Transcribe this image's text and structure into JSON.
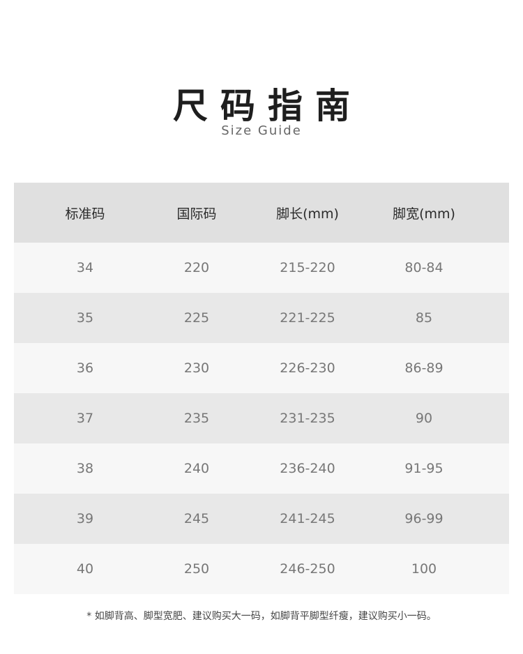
{
  "title": "尺码指南",
  "subtitle": "Size Guide",
  "colors": {
    "header_bg": "#e0e0e0",
    "row_light": "#f7f7f7",
    "row_dark": "#e8e8e8"
  },
  "table": {
    "headers": [
      "标准码",
      "国际码",
      "脚长(mm)",
      "脚宽(mm)"
    ],
    "rows": [
      [
        "34",
        "220",
        "215-220",
        "80-84"
      ],
      [
        "35",
        "225",
        "221-225",
        "85"
      ],
      [
        "36",
        "230",
        "226-230",
        "86-89"
      ],
      [
        "37",
        "235",
        "231-235",
        "90"
      ],
      [
        "38",
        "240",
        "236-240",
        "91-95"
      ],
      [
        "39",
        "245",
        "241-245",
        "96-99"
      ],
      [
        "40",
        "250",
        "246-250",
        "100"
      ]
    ]
  },
  "note": "* 如脚背高、脚型宽肥、建议购买大一码，如脚背平脚型纤瘦，建议购买小一码。"
}
